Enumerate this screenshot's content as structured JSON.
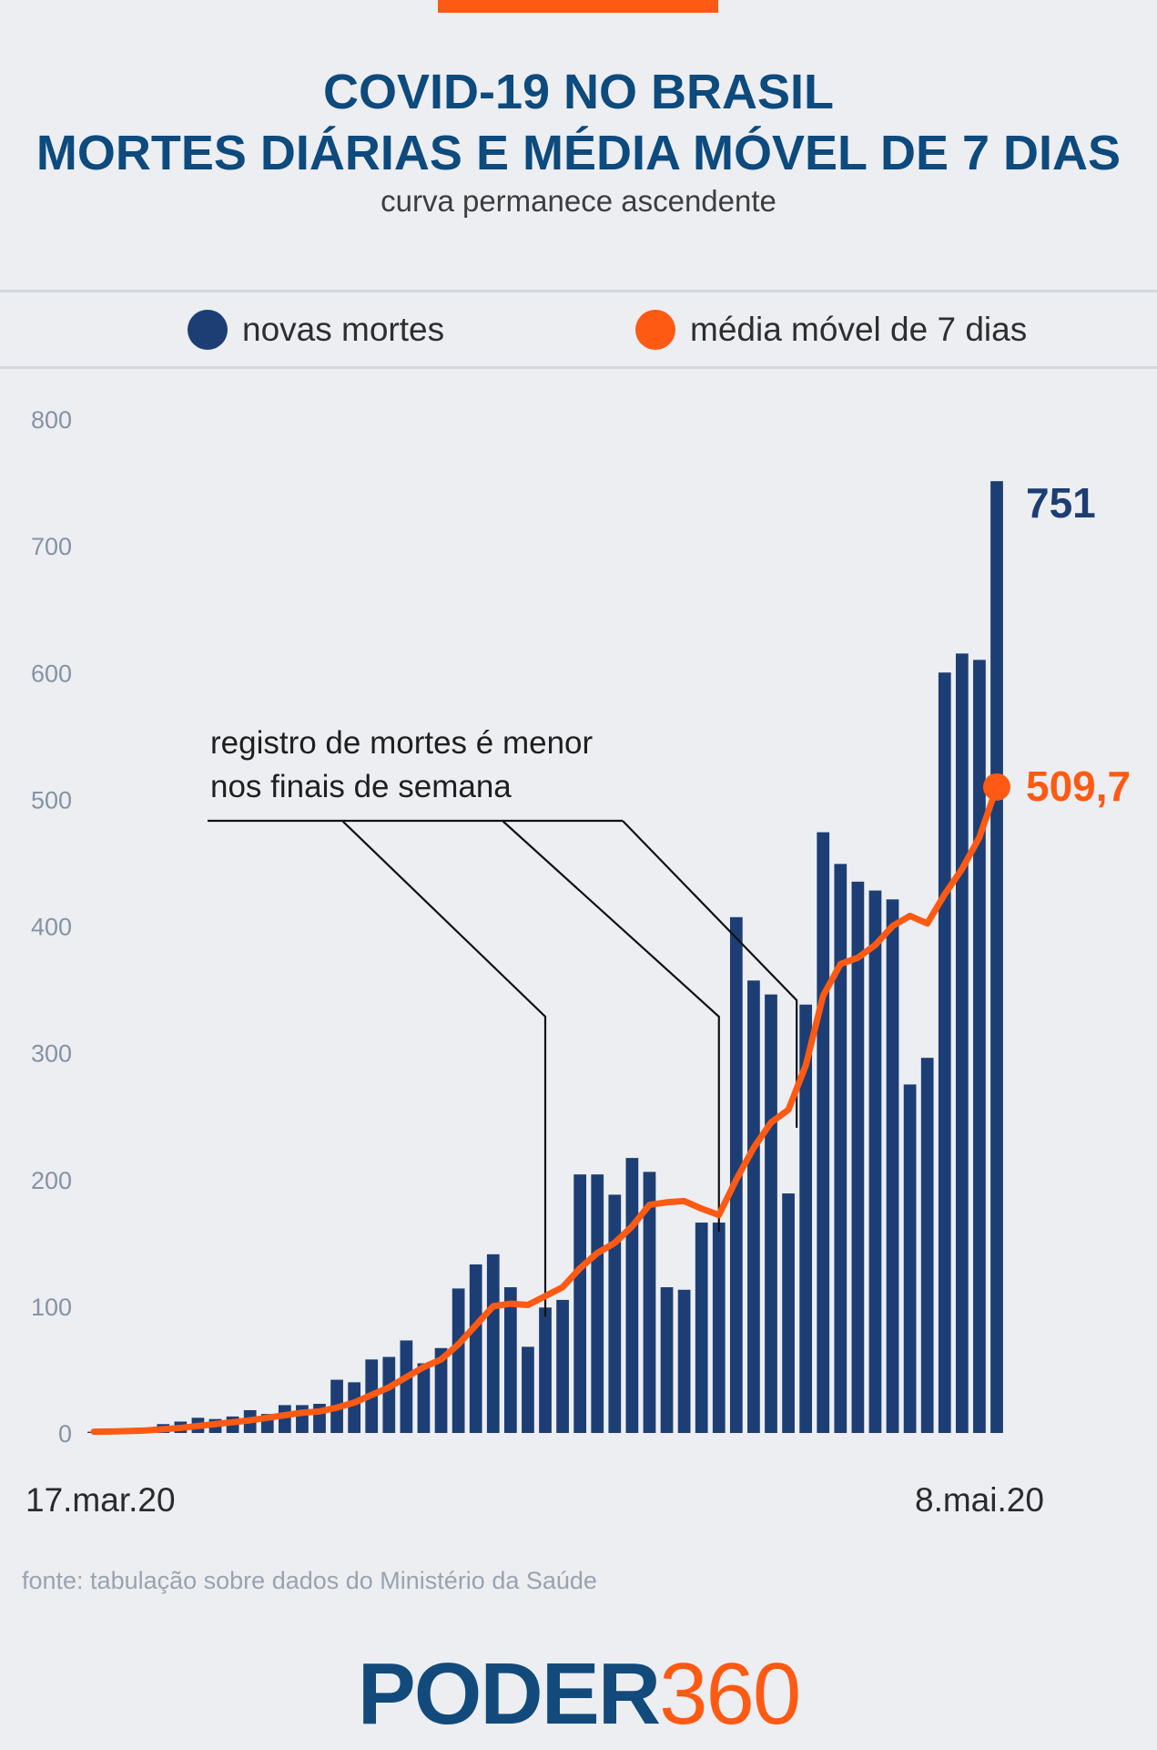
{
  "header": {
    "title_line1": "COVID-19 NO BRASIL",
    "title_line2": "MORTES DIÁRIAS E MÉDIA MÓVEL DE 7 DIAS",
    "subtitle": "curva permanece ascendente"
  },
  "colors": {
    "bars": "#1d3e74",
    "line": "#ff5a13",
    "title": "#0d4a7d"
  },
  "legend": {
    "series1": "novas mortes",
    "series2": "média móvel de 7 dias"
  },
  "annotation": {
    "line1": "registro de mortes é menor",
    "line2": "nos finais de semana"
  },
  "chart_data": {
    "type": "bar",
    "xlabel": "",
    "ylabel": "",
    "ylim": [
      0,
      800
    ],
    "yticks": [
      0,
      100,
      200,
      300,
      400,
      500,
      600,
      700,
      800
    ],
    "x_start_label": "17.mar.20",
    "x_end_label": "8.mai.20",
    "grid": false,
    "series": [
      {
        "name": "novas mortes",
        "type": "bar",
        "values": [
          1,
          2,
          3,
          4,
          7,
          9,
          12,
          11,
          13,
          18,
          15,
          22,
          22,
          23,
          42,
          40,
          58,
          60,
          73,
          55,
          67,
          114,
          133,
          141,
          115,
          68,
          99,
          105,
          204,
          204,
          188,
          217,
          206,
          115,
          113,
          166,
          166,
          407,
          357,
          346,
          189,
          338,
          474,
          449,
          435,
          428,
          421,
          275,
          296,
          600,
          615,
          610,
          751
        ]
      },
      {
        "name": "média móvel de 7 dias",
        "type": "line",
        "values": [
          1,
          1.2,
          1.5,
          2,
          3,
          4,
          5.5,
          7,
          8.5,
          10,
          12,
          14,
          16,
          17,
          20,
          24,
          30,
          36,
          44,
          52,
          58,
          70,
          85,
          100,
          102,
          101,
          108,
          115,
          130,
          142,
          150,
          163,
          180,
          182,
          183,
          177,
          172,
          200,
          225,
          245,
          255,
          290,
          345,
          370,
          375,
          385,
          400,
          408,
          402,
          425,
          445,
          470,
          509.7
        ]
      }
    ],
    "annotations": [
      "751",
      "509,7"
    ]
  },
  "source": "fonte: tabulação sobre dados do Ministério da Saúde",
  "logo": {
    "part1": "PODER",
    "part2": "360"
  }
}
